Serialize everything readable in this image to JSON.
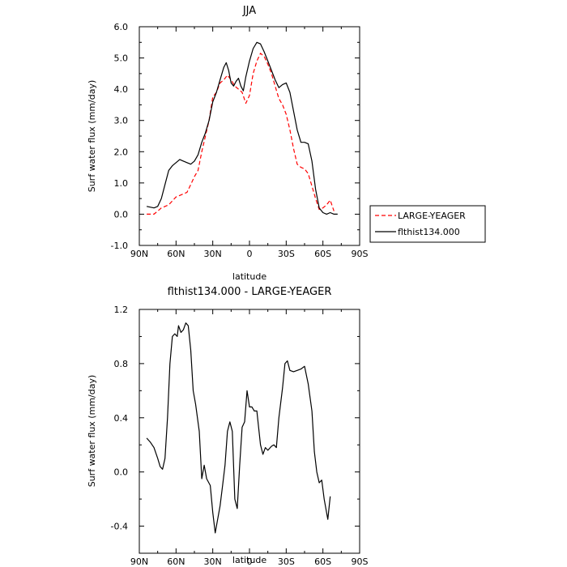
{
  "chart_data": [
    {
      "type": "line",
      "title": "JJA",
      "xlabel": "latitude",
      "ylabel": "Surf water flux (mm/day)",
      "xlim": [
        90,
        -90
      ],
      "ylim": [
        -1.0,
        6.0
      ],
      "x_ticks": [
        90,
        60,
        30,
        0,
        -30,
        -60,
        -90
      ],
      "x_tick_labels": [
        "90N",
        "60N",
        "30N",
        "0",
        "30S",
        "60S",
        "90S"
      ],
      "y_ticks": [
        -1.0,
        0.0,
        1.0,
        2.0,
        3.0,
        4.0,
        5.0,
        6.0
      ],
      "y_tick_labels": [
        "-1.0",
        "0.0",
        "1.0",
        "2.0",
        "3.0",
        "4.0",
        "5.0",
        "6.0"
      ],
      "legend_position": "right",
      "series": [
        {
          "name": "LARGE-YEAGER",
          "color": "#ff0000",
          "dashed": true,
          "points": [
            [
              84,
              0
            ],
            [
              78,
              0
            ],
            [
              75,
              0.1
            ],
            [
              72,
              0.2
            ],
            [
              66,
              0.3
            ],
            [
              60,
              0.55
            ],
            [
              57,
              0.6
            ],
            [
              51,
              0.7
            ],
            [
              48,
              0.95
            ],
            [
              45,
              1.2
            ],
            [
              42,
              1.4
            ],
            [
              39,
              2.0
            ],
            [
              36,
              2.5
            ],
            [
              33,
              3.0
            ],
            [
              30,
              3.75
            ],
            [
              27,
              3.9
            ],
            [
              24,
              4.2
            ],
            [
              21,
              4.3
            ],
            [
              18,
              4.45
            ],
            [
              15,
              4.3
            ],
            [
              12,
              4.1
            ],
            [
              9,
              4.0
            ],
            [
              6,
              3.9
            ],
            [
              3,
              3.55
            ],
            [
              0,
              3.8
            ],
            [
              -3,
              4.5
            ],
            [
              -6,
              4.9
            ],
            [
              -9,
              5.15
            ],
            [
              -12,
              5.05
            ],
            [
              -15,
              4.8
            ],
            [
              -18,
              4.5
            ],
            [
              -21,
              4.1
            ],
            [
              -24,
              3.7
            ],
            [
              -27,
              3.5
            ],
            [
              -30,
              3.2
            ],
            [
              -33,
              2.7
            ],
            [
              -36,
              2.1
            ],
            [
              -39,
              1.6
            ],
            [
              -42,
              1.5
            ],
            [
              -45,
              1.45
            ],
            [
              -48,
              1.3
            ],
            [
              -51,
              0.9
            ],
            [
              -54,
              0.5
            ],
            [
              -57,
              0.15
            ],
            [
              -60,
              0.2
            ],
            [
              -63,
              0.3
            ],
            [
              -66,
              0.45
            ],
            [
              -69,
              0.1
            ]
          ]
        },
        {
          "name": "flthist134.000",
          "color": "#000000",
          "dashed": false,
          "points": [
            [
              84,
              0.25
            ],
            [
              78,
              0.2
            ],
            [
              75,
              0.25
            ],
            [
              72,
              0.5
            ],
            [
              69,
              0.95
            ],
            [
              66,
              1.4
            ],
            [
              63,
              1.55
            ],
            [
              60,
              1.65
            ],
            [
              57,
              1.75
            ],
            [
              54,
              1.7
            ],
            [
              51,
              1.65
            ],
            [
              48,
              1.6
            ],
            [
              45,
              1.7
            ],
            [
              42,
              1.9
            ],
            [
              39,
              2.3
            ],
            [
              36,
              2.6
            ],
            [
              33,
              3.0
            ],
            [
              30,
              3.6
            ],
            [
              27,
              3.9
            ],
            [
              24,
              4.3
            ],
            [
              21,
              4.7
            ],
            [
              19,
              4.85
            ],
            [
              17,
              4.6
            ],
            [
              15,
              4.2
            ],
            [
              13,
              4.1
            ],
            [
              11,
              4.25
            ],
            [
              9,
              4.35
            ],
            [
              7,
              4.1
            ],
            [
              5,
              3.95
            ],
            [
              3,
              4.4
            ],
            [
              0,
              4.9
            ],
            [
              -3,
              5.3
            ],
            [
              -6,
              5.5
            ],
            [
              -9,
              5.45
            ],
            [
              -12,
              5.2
            ],
            [
              -15,
              4.9
            ],
            [
              -18,
              4.6
            ],
            [
              -21,
              4.3
            ],
            [
              -24,
              4.05
            ],
            [
              -27,
              4.15
            ],
            [
              -30,
              4.2
            ],
            [
              -33,
              3.9
            ],
            [
              -36,
              3.3
            ],
            [
              -39,
              2.7
            ],
            [
              -42,
              2.3
            ],
            [
              -45,
              2.3
            ],
            [
              -48,
              2.25
            ],
            [
              -51,
              1.7
            ],
            [
              -54,
              0.8
            ],
            [
              -57,
              0.2
            ],
            [
              -60,
              0.05
            ],
            [
              -63,
              0.0
            ],
            [
              -66,
              0.05
            ],
            [
              -69,
              0.0
            ],
            [
              -72,
              0.0
            ]
          ]
        }
      ]
    },
    {
      "type": "line",
      "title": "flthist134.000 - LARGE-YEAGER",
      "xlabel": "latitude",
      "ylabel": "Surf water flux (mm/day)",
      "xlim": [
        90,
        -90
      ],
      "ylim": [
        -0.6,
        1.2
      ],
      "x_ticks": [
        90,
        60,
        30,
        0,
        -30,
        -60,
        -90
      ],
      "x_tick_labels": [
        "90N",
        "60N",
        "30N",
        "0",
        "30S",
        "60S",
        "90S"
      ],
      "y_ticks": [
        -0.4,
        0.0,
        0.4,
        0.8,
        1.2
      ],
      "y_tick_labels": [
        "-0.4",
        "0.0",
        "0.4",
        "0.8",
        "1.2"
      ],
      "series": [
        {
          "color": "#000000",
          "dashed": false,
          "points": [
            [
              84,
              0.25
            ],
            [
              81,
              0.22
            ],
            [
              78,
              0.18
            ],
            [
              75,
              0.1
            ],
            [
              73,
              0.04
            ],
            [
              71,
              0.02
            ],
            [
              69,
              0.1
            ],
            [
              67,
              0.4
            ],
            [
              65,
              0.8
            ],
            [
              63,
              1.0
            ],
            [
              61,
              1.02
            ],
            [
              59,
              1.0
            ],
            [
              58,
              1.08
            ],
            [
              56,
              1.03
            ],
            [
              54,
              1.05
            ],
            [
              52,
              1.1
            ],
            [
              50,
              1.08
            ],
            [
              48,
              0.9
            ],
            [
              46,
              0.6
            ],
            [
              44,
              0.5
            ],
            [
              41,
              0.3
            ],
            [
              39,
              -0.05
            ],
            [
              37,
              0.05
            ],
            [
              35,
              -0.05
            ],
            [
              32,
              -0.1
            ],
            [
              30,
              -0.3
            ],
            [
              28,
              -0.45
            ],
            [
              26,
              -0.35
            ],
            [
              24,
              -0.25
            ],
            [
              22,
              -0.1
            ],
            [
              20,
              0.05
            ],
            [
              18,
              0.3
            ],
            [
              16,
              0.37
            ],
            [
              14,
              0.3
            ],
            [
              12,
              -0.2
            ],
            [
              10,
              -0.27
            ],
            [
              8,
              0.05
            ],
            [
              6,
              0.33
            ],
            [
              4,
              0.37
            ],
            [
              2,
              0.6
            ],
            [
              0,
              0.48
            ],
            [
              -2,
              0.48
            ],
            [
              -4,
              0.45
            ],
            [
              -6,
              0.45
            ],
            [
              -9,
              0.2
            ],
            [
              -11,
              0.13
            ],
            [
              -13,
              0.18
            ],
            [
              -15,
              0.16
            ],
            [
              -18,
              0.19
            ],
            [
              -20,
              0.2
            ],
            [
              -22,
              0.18
            ],
            [
              -24,
              0.4
            ],
            [
              -27,
              0.62
            ],
            [
              -29,
              0.8
            ],
            [
              -31,
              0.82
            ],
            [
              -33,
              0.75
            ],
            [
              -36,
              0.74
            ],
            [
              -39,
              0.75
            ],
            [
              -42,
              0.76
            ],
            [
              -45,
              0.78
            ],
            [
              -48,
              0.65
            ],
            [
              -51,
              0.45
            ],
            [
              -53,
              0.15
            ],
            [
              -55,
              0.0
            ],
            [
              -57,
              -0.08
            ],
            [
              -59,
              -0.06
            ],
            [
              -61,
              -0.2
            ],
            [
              -63,
              -0.3
            ],
            [
              -64,
              -0.35
            ],
            [
              -66,
              -0.18
            ]
          ]
        }
      ]
    }
  ]
}
